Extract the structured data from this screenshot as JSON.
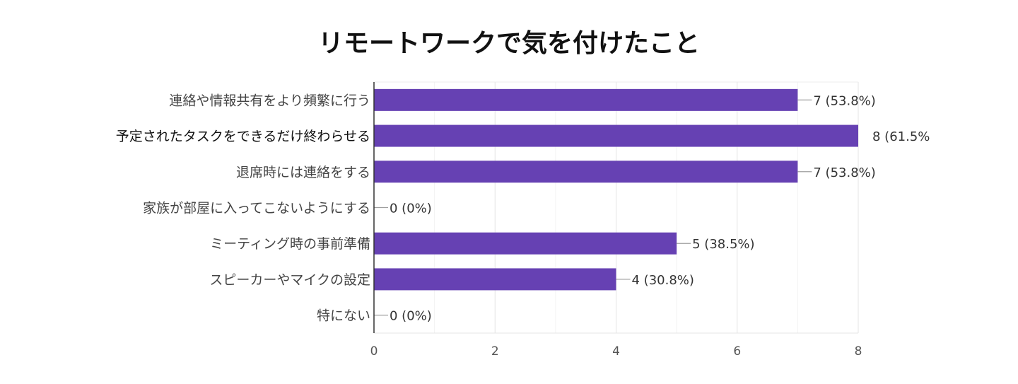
{
  "chart_data": {
    "type": "bar",
    "orientation": "horizontal",
    "title": "リモートワークで気を付けたこと",
    "categories": [
      "連絡や情報共有をより頻繁に行う",
      "予定されたタスクをできるだけ終わらせる",
      "退席時には連絡をする",
      "家族が部屋に入ってこないようにする",
      "ミーティング時の事前準備",
      "スピーカーやマイクの設定",
      "特にない"
    ],
    "values": [
      7,
      8,
      7,
      0,
      5,
      4,
      0
    ],
    "data_labels": [
      "7 (53.8%)",
      "8 (61.5%",
      "7 (53.8%)",
      "0 (0%)",
      "5 (38.5%)",
      "4 (30.8%)",
      "0 (0%)"
    ],
    "x_ticks": [
      "0",
      "2",
      "4",
      "6",
      "8"
    ],
    "xlim": [
      0,
      8
    ],
    "grid": true,
    "bar_color": "#6641b3",
    "highlighted_category_index": 1
  }
}
